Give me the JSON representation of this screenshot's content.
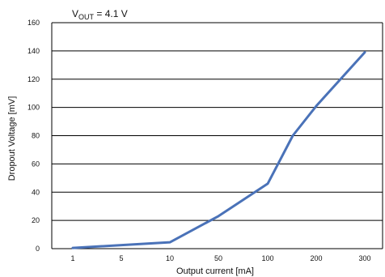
{
  "chart_data": {
    "type": "line",
    "title_main": "V",
    "title_sub": "OUT",
    "title_rest": " = 4.1 V",
    "xlabel": "Output current [mA]",
    "ylabel": "Dropout Voltage [mV]",
    "ylim": [
      0,
      160
    ],
    "y_ticks": [
      "0",
      "20",
      "40",
      "60",
      "80",
      "100",
      "120",
      "140",
      "160"
    ],
    "x_categories": [
      "1",
      "5",
      "10",
      "50",
      "100",
      "200",
      "300"
    ],
    "grid": "horizontal",
    "series": [
      {
        "color": "#4a72b8",
        "points": [
          {
            "x": "1",
            "y": 0.5
          },
          {
            "x": "10",
            "y": 4.5
          },
          {
            "x": "50",
            "y": 23
          },
          {
            "x": "100",
            "y": 46
          },
          {
            "x": "150",
            "y": 80
          },
          {
            "x": "200",
            "y": 101
          },
          {
            "x": "300",
            "y": 139
          }
        ]
      }
    ]
  }
}
